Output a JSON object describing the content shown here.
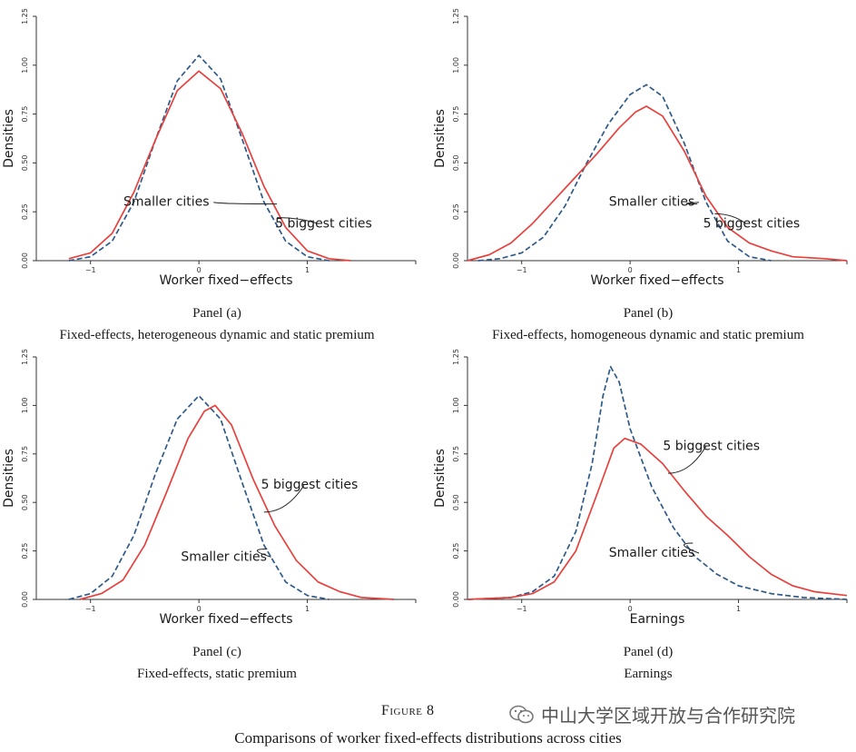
{
  "chart_data": [
    {
      "type": "line",
      "panel": "Panel (a)",
      "subtitle": "Fixed-effects, heterogeneous dynamic and static premium",
      "xlabel": "Worker fixed−effects",
      "ylabel": "Densities",
      "xlim": [
        -1.5,
        2.0
      ],
      "ylim": [
        0,
        1.25
      ],
      "xticks": [
        {
          "v": -1,
          "label": "−1"
        },
        {
          "v": 0,
          "label": "0"
        },
        {
          "v": 1,
          "label": "1"
        }
      ],
      "yticks": [
        {
          "v": 0,
          "label": "0.00"
        },
        {
          "v": 0.25,
          "label": "0.25"
        },
        {
          "v": 0.5,
          "label": "0.50"
        },
        {
          "v": 0.75,
          "label": "0.75"
        },
        {
          "v": 1.0,
          "label": "1.00"
        },
        {
          "v": 1.25,
          "label": "1.25"
        }
      ],
      "series": [
        {
          "name": "Smaller cities",
          "style": "dashed",
          "color": "#2e5a8a",
          "points": [
            [
              -1.2,
              0.0
            ],
            [
              -1.0,
              0.02
            ],
            [
              -0.8,
              0.1
            ],
            [
              -0.6,
              0.3
            ],
            [
              -0.4,
              0.62
            ],
            [
              -0.2,
              0.92
            ],
            [
              0.0,
              1.05
            ],
            [
              0.2,
              0.93
            ],
            [
              0.4,
              0.62
            ],
            [
              0.6,
              0.3
            ],
            [
              0.8,
              0.1
            ],
            [
              1.0,
              0.02
            ],
            [
              1.2,
              0.0
            ]
          ]
        },
        {
          "name": "5 biggest cities",
          "style": "solid",
          "color": "#e8413d",
          "points": [
            [
              -1.2,
              0.01
            ],
            [
              -1.0,
              0.04
            ],
            [
              -0.8,
              0.14
            ],
            [
              -0.6,
              0.35
            ],
            [
              -0.4,
              0.62
            ],
            [
              -0.2,
              0.87
            ],
            [
              0.0,
              0.97
            ],
            [
              0.2,
              0.88
            ],
            [
              0.4,
              0.65
            ],
            [
              0.6,
              0.38
            ],
            [
              0.8,
              0.17
            ],
            [
              1.0,
              0.05
            ],
            [
              1.2,
              0.01
            ],
            [
              1.4,
              0.0
            ]
          ]
        }
      ],
      "annotations": [
        {
          "text": "Smaller cities",
          "x": -0.3,
          "y": 0.28,
          "tx": 0.72,
          "ty": 0.29
        },
        {
          "text": "5 biggest cities",
          "x": 1.15,
          "y": 0.17,
          "tx": 0.72,
          "ty": 0.22
        }
      ]
    },
    {
      "type": "line",
      "panel": "Panel (b)",
      "subtitle": "Fixed-effects, homogeneous dynamic and static premium",
      "xlabel": "Worker fixed−effects",
      "ylabel": "Densities",
      "xlim": [
        -1.5,
        2.0
      ],
      "ylim": [
        0,
        1.25
      ],
      "xticks": [
        {
          "v": -1,
          "label": "−1"
        },
        {
          "v": 0,
          "label": "0"
        },
        {
          "v": 1,
          "label": "1"
        }
      ],
      "yticks": [
        {
          "v": 0,
          "label": "0.00"
        },
        {
          "v": 0.25,
          "label": "0.25"
        },
        {
          "v": 0.5,
          "label": "0.50"
        },
        {
          "v": 0.75,
          "label": "0.75"
        },
        {
          "v": 1.0,
          "label": "1.00"
        },
        {
          "v": 1.25,
          "label": "1.25"
        }
      ],
      "series": [
        {
          "name": "Smaller cities",
          "style": "dashed",
          "color": "#2e5a8a",
          "points": [
            [
              -1.4,
              0.0
            ],
            [
              -1.2,
              0.01
            ],
            [
              -1.0,
              0.04
            ],
            [
              -0.8,
              0.12
            ],
            [
              -0.6,
              0.28
            ],
            [
              -0.4,
              0.5
            ],
            [
              -0.2,
              0.7
            ],
            [
              0.0,
              0.85
            ],
            [
              0.15,
              0.9
            ],
            [
              0.3,
              0.84
            ],
            [
              0.5,
              0.6
            ],
            [
              0.7,
              0.3
            ],
            [
              0.9,
              0.1
            ],
            [
              1.1,
              0.02
            ],
            [
              1.3,
              0.0
            ]
          ]
        },
        {
          "name": "5 biggest cities",
          "style": "solid",
          "color": "#e8413d",
          "points": [
            [
              -1.5,
              0.0
            ],
            [
              -1.3,
              0.03
            ],
            [
              -1.1,
              0.09
            ],
            [
              -0.9,
              0.19
            ],
            [
              -0.7,
              0.31
            ],
            [
              -0.5,
              0.43
            ],
            [
              -0.3,
              0.55
            ],
            [
              -0.1,
              0.68
            ],
            [
              0.05,
              0.76
            ],
            [
              0.15,
              0.79
            ],
            [
              0.3,
              0.74
            ],
            [
              0.5,
              0.56
            ],
            [
              0.7,
              0.33
            ],
            [
              0.9,
              0.17
            ],
            [
              1.1,
              0.09
            ],
            [
              1.3,
              0.05
            ],
            [
              1.5,
              0.02
            ],
            [
              1.8,
              0.01
            ],
            [
              2.0,
              0.0
            ]
          ]
        }
      ],
      "annotations": [
        {
          "text": "Smaller cities",
          "x": 0.2,
          "y": 0.28,
          "tx": 0.62,
          "ty": 0.29
        },
        {
          "text": "5 biggest cities",
          "x": 1.12,
          "y": 0.17,
          "tx": 0.78,
          "ty": 0.24
        }
      ]
    },
    {
      "type": "line",
      "panel": "Panel (c)",
      "subtitle": "Fixed-effects, static premium",
      "xlabel": "Worker fixed−effects",
      "ylabel": "Densities",
      "xlim": [
        -1.5,
        2.0
      ],
      "ylim": [
        0,
        1.25
      ],
      "xticks": [
        {
          "v": -1,
          "label": "−1"
        },
        {
          "v": 0,
          "label": "0"
        },
        {
          "v": 1,
          "label": "1"
        }
      ],
      "yticks": [
        {
          "v": 0,
          "label": "0.00"
        },
        {
          "v": 0.25,
          "label": "0.25"
        },
        {
          "v": 0.5,
          "label": "0.50"
        },
        {
          "v": 0.75,
          "label": "0.75"
        },
        {
          "v": 1.0,
          "label": "1.00"
        },
        {
          "v": 1.25,
          "label": "1.25"
        }
      ],
      "series": [
        {
          "name": "Smaller cities",
          "style": "dashed",
          "color": "#2e5a8a",
          "points": [
            [
              -1.2,
              0.0
            ],
            [
              -1.0,
              0.03
            ],
            [
              -0.8,
              0.12
            ],
            [
              -0.6,
              0.33
            ],
            [
              -0.4,
              0.65
            ],
            [
              -0.2,
              0.93
            ],
            [
              0.0,
              1.05
            ],
            [
              0.2,
              0.93
            ],
            [
              0.4,
              0.6
            ],
            [
              0.6,
              0.28
            ],
            [
              0.8,
              0.09
            ],
            [
              1.0,
              0.02
            ],
            [
              1.2,
              0.0
            ]
          ]
        },
        {
          "name": "5 biggest cities",
          "style": "solid",
          "color": "#e8413d",
          "points": [
            [
              -1.1,
              0.0
            ],
            [
              -0.9,
              0.03
            ],
            [
              -0.7,
              0.1
            ],
            [
              -0.5,
              0.28
            ],
            [
              -0.3,
              0.55
            ],
            [
              -0.1,
              0.83
            ],
            [
              0.05,
              0.97
            ],
            [
              0.15,
              1.0
            ],
            [
              0.3,
              0.9
            ],
            [
              0.5,
              0.62
            ],
            [
              0.7,
              0.38
            ],
            [
              0.9,
              0.2
            ],
            [
              1.1,
              0.09
            ],
            [
              1.3,
              0.04
            ],
            [
              1.5,
              0.01
            ],
            [
              1.8,
              0.0
            ]
          ]
        }
      ],
      "annotations": [
        {
          "text": "Smaller cities",
          "x": 0.23,
          "y": 0.2,
          "tx": 0.63,
          "ty": 0.26
        },
        {
          "text": "5 biggest cities",
          "x": 1.02,
          "y": 0.57,
          "tx": 0.6,
          "ty": 0.45
        }
      ]
    },
    {
      "type": "line",
      "panel": "Panel (d)",
      "subtitle": "Earnings",
      "xlabel": "Earnings",
      "ylabel": "Densities",
      "xlim": [
        -1.5,
        2.0
      ],
      "ylim": [
        0,
        1.25
      ],
      "xticks": [
        {
          "v": -1,
          "label": "−1"
        },
        {
          "v": 0,
          "label": "0"
        },
        {
          "v": 1,
          "label": "1"
        }
      ],
      "yticks": [
        {
          "v": 0,
          "label": "0.00"
        },
        {
          "v": 0.25,
          "label": "0.25"
        },
        {
          "v": 0.5,
          "label": "0.50"
        },
        {
          "v": 0.75,
          "label": "0.75"
        },
        {
          "v": 1.0,
          "label": "1.00"
        },
        {
          "v": 1.25,
          "label": "1.25"
        }
      ],
      "series": [
        {
          "name": "Smaller cities",
          "style": "dashed",
          "color": "#2e5a8a",
          "points": [
            [
              -1.5,
              0.0
            ],
            [
              -1.1,
              0.01
            ],
            [
              -0.9,
              0.04
            ],
            [
              -0.7,
              0.12
            ],
            [
              -0.5,
              0.35
            ],
            [
              -0.35,
              0.7
            ],
            [
              -0.25,
              1.05
            ],
            [
              -0.18,
              1.2
            ],
            [
              -0.1,
              1.12
            ],
            [
              0.0,
              0.88
            ],
            [
              0.2,
              0.58
            ],
            [
              0.4,
              0.37
            ],
            [
              0.6,
              0.22
            ],
            [
              0.8,
              0.13
            ],
            [
              1.0,
              0.07
            ],
            [
              1.3,
              0.03
            ],
            [
              1.6,
              0.01
            ],
            [
              2.0,
              0.0
            ]
          ]
        },
        {
          "name": "5 biggest cities",
          "style": "solid",
          "color": "#e8413d",
          "points": [
            [
              -1.5,
              0.0
            ],
            [
              -1.1,
              0.01
            ],
            [
              -0.9,
              0.03
            ],
            [
              -0.7,
              0.09
            ],
            [
              -0.5,
              0.25
            ],
            [
              -0.3,
              0.55
            ],
            [
              -0.15,
              0.78
            ],
            [
              -0.05,
              0.83
            ],
            [
              0.1,
              0.8
            ],
            [
              0.3,
              0.7
            ],
            [
              0.5,
              0.56
            ],
            [
              0.7,
              0.43
            ],
            [
              0.9,
              0.33
            ],
            [
              1.1,
              0.22
            ],
            [
              1.3,
              0.13
            ],
            [
              1.5,
              0.07
            ],
            [
              1.7,
              0.04
            ],
            [
              2.0,
              0.02
            ]
          ]
        }
      ],
      "annotations": [
        {
          "text": "Smaller cities",
          "x": 0.2,
          "y": 0.22,
          "tx": 0.58,
          "ty": 0.29
        },
        {
          "text": "5 biggest cities",
          "x": 0.75,
          "y": 0.77,
          "tx": 0.35,
          "ty": 0.65
        }
      ]
    }
  ],
  "figure": {
    "label": "Figure 8",
    "caption": "Comparisons of worker fixed-effects distributions across cities"
  },
  "watermark": {
    "text": "中山大学区域开放与合作研究院",
    "icon": "wechat-icon"
  }
}
